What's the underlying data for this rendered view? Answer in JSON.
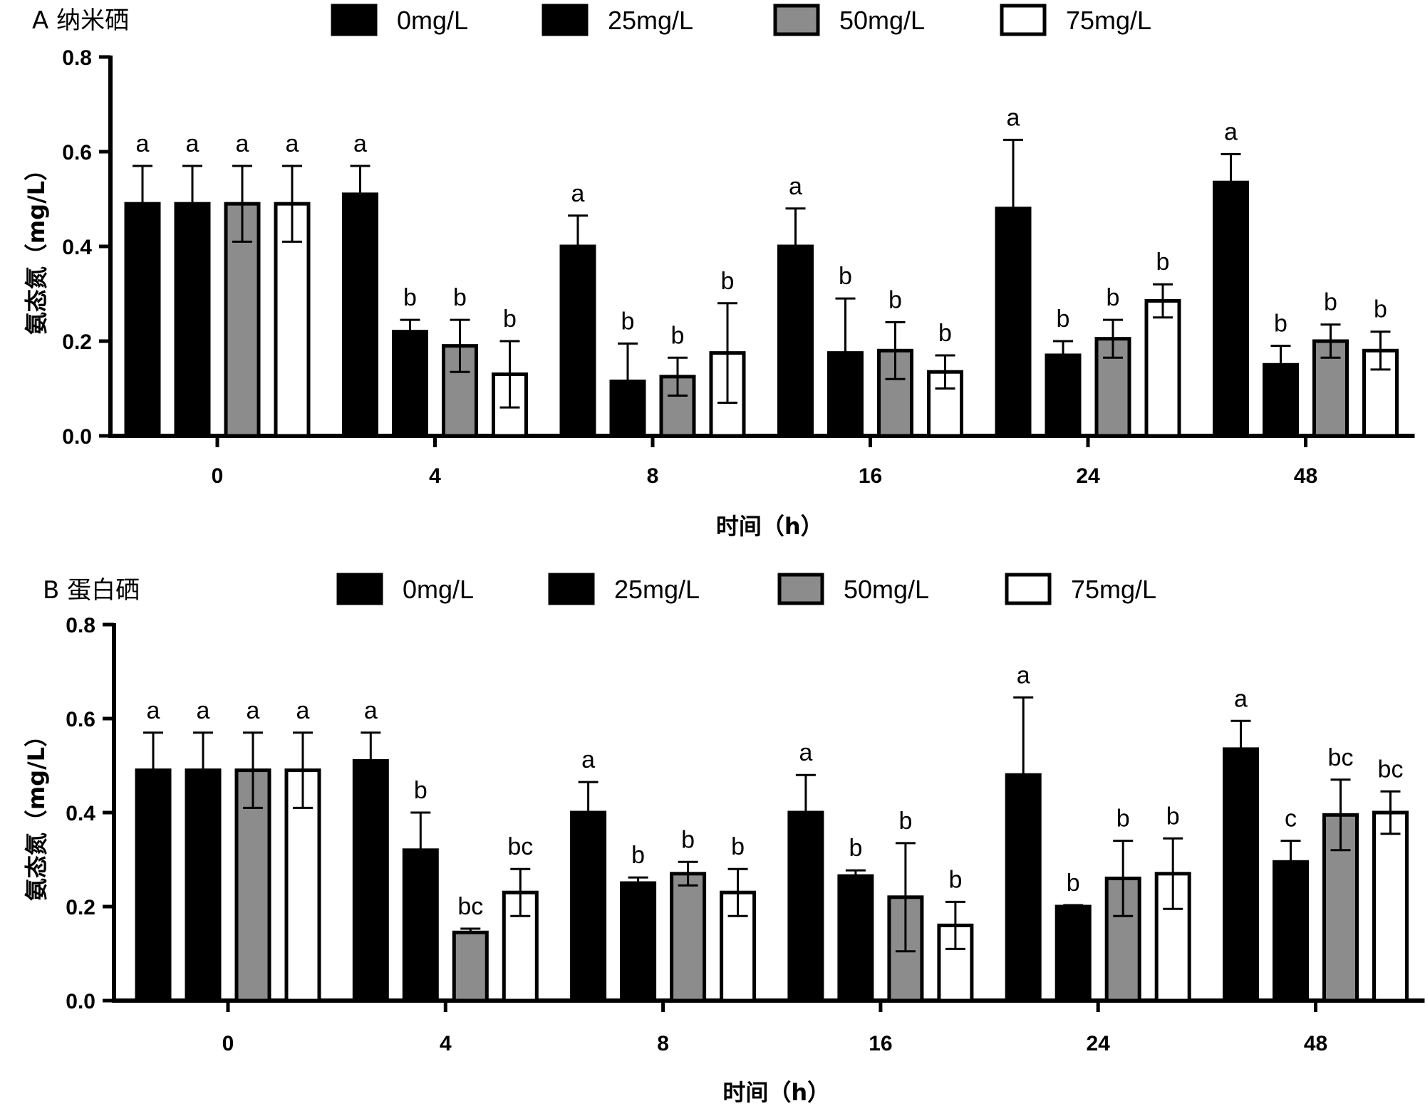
{
  "chart_data": [
    {
      "type": "bar",
      "panel_label": "A 纳米硒",
      "categories": [
        "0",
        "4",
        "8",
        "16",
        "24",
        "48"
      ],
      "xlabel": "时间（h）",
      "ylabel": "氨态氮（mg/L）",
      "ylim": [
        0,
        0.8
      ],
      "yticks": [
        "0.0",
        "0.2",
        "0.4",
        "0.6",
        "0.8"
      ],
      "legend": [
        "0mg/L",
        "25mg/L",
        "50mg/L",
        "75mg/L"
      ],
      "series": [
        {
          "name": "0mg/L",
          "color": "#000000",
          "values": [
            0.49,
            0.51,
            0.4,
            0.4,
            0.48,
            0.535
          ],
          "errors": [
            0.08,
            0.06,
            0.065,
            0.08,
            0.145,
            0.06
          ],
          "letters": [
            "a",
            "a",
            "a",
            "a",
            "a",
            "a"
          ]
        },
        {
          "name": "25mg/L",
          "color": "#000000",
          "values": [
            0.49,
            0.22,
            0.115,
            0.175,
            0.17,
            0.15
          ],
          "errors": [
            0.08,
            0.025,
            0.08,
            0.115,
            0.03,
            0.04
          ],
          "letters": [
            "a",
            "b",
            "b",
            "b",
            "b",
            "b"
          ]
        },
        {
          "name": "50mg/L",
          "color": "#8c8c8c",
          "values": [
            0.49,
            0.19,
            0.125,
            0.18,
            0.205,
            0.2
          ],
          "errors": [
            0.08,
            0.055,
            0.04,
            0.06,
            0.04,
            0.035
          ],
          "letters": [
            "a",
            "b",
            "b",
            "b",
            "b",
            "b"
          ]
        },
        {
          "name": "75mg/L",
          "color": "#ffffff",
          "values": [
            0.49,
            0.13,
            0.175,
            0.135,
            0.285,
            0.18
          ],
          "errors": [
            0.08,
            0.07,
            0.105,
            0.035,
            0.035,
            0.04
          ],
          "letters": [
            "a",
            "b",
            "b",
            "b",
            "b",
            "b"
          ]
        }
      ]
    },
    {
      "type": "bar",
      "panel_label": "B 蛋白硒",
      "categories": [
        "0",
        "4",
        "8",
        "16",
        "24",
        "48"
      ],
      "xlabel": "时间（h）",
      "ylabel": "氨态氮（mg/L）",
      "ylim": [
        0,
        0.8
      ],
      "yticks": [
        "0.0",
        "0.2",
        "0.4",
        "0.6",
        "0.8"
      ],
      "legend": [
        "0mg/L",
        "25mg/L",
        "50mg/L",
        "75mg/L"
      ],
      "series": [
        {
          "name": "0mg/L",
          "color": "#000000",
          "values": [
            0.49,
            0.51,
            0.4,
            0.4,
            0.48,
            0.535
          ],
          "errors": [
            0.08,
            0.06,
            0.065,
            0.08,
            0.165,
            0.06
          ],
          "letters": [
            "a",
            "a",
            "a",
            "a",
            "a",
            "a"
          ]
        },
        {
          "name": "25mg/L",
          "color": "#000000",
          "values": [
            0.49,
            0.32,
            0.25,
            0.265,
            0.2,
            0.295
          ],
          "errors": [
            0.08,
            0.08,
            0.012,
            0.012,
            0.003,
            0.045
          ],
          "letters": [
            "a",
            "b",
            "b",
            "b",
            "b",
            "c"
          ]
        },
        {
          "name": "50mg/L",
          "color": "#8c8c8c",
          "values": [
            0.49,
            0.145,
            0.27,
            0.22,
            0.26,
            0.395
          ],
          "errors": [
            0.08,
            0.008,
            0.025,
            0.115,
            0.08,
            0.075
          ],
          "letters": [
            "a",
            "bc",
            "b",
            "b",
            "b",
            "bc"
          ]
        },
        {
          "name": "75mg/L",
          "color": "#ffffff",
          "values": [
            0.49,
            0.23,
            0.23,
            0.16,
            0.27,
            0.4
          ],
          "errors": [
            0.08,
            0.05,
            0.05,
            0.05,
            0.075,
            0.045
          ],
          "letters": [
            "a",
            "bc",
            "b",
            "b",
            "b",
            "bc"
          ]
        }
      ]
    }
  ]
}
